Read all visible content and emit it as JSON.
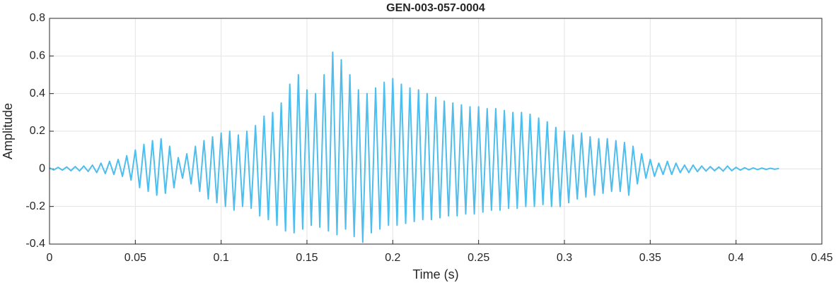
{
  "chart_data": {
    "type": "line",
    "title": "GEN-003-057-0004",
    "xlabel": "Time (s)",
    "ylabel": "Amplitude",
    "x": [
      0,
      0.0025,
      0.005,
      0.0075,
      0.01,
      0.0125,
      0.015,
      0.0175,
      0.02,
      0.0225,
      0.025,
      0.0275,
      0.03,
      0.0325,
      0.035,
      0.0375,
      0.04,
      0.0425,
      0.045,
      0.0475,
      0.05,
      0.0525,
      0.055,
      0.0575,
      0.06,
      0.0625,
      0.065,
      0.0675,
      0.07,
      0.0725,
      0.075,
      0.0775,
      0.08,
      0.0825,
      0.085,
      0.0875,
      0.09,
      0.0925,
      0.095,
      0.0975,
      0.1,
      0.1025,
      0.105,
      0.1075,
      0.11,
      0.1125,
      0.115,
      0.1175,
      0.12,
      0.1225,
      0.125,
      0.1275,
      0.13,
      0.1325,
      0.135,
      0.1375,
      0.14,
      0.1425,
      0.145,
      0.1475,
      0.15,
      0.1525,
      0.155,
      0.1575,
      0.16,
      0.1625,
      0.165,
      0.1675,
      0.17,
      0.1725,
      0.175,
      0.1775,
      0.18,
      0.1825,
      0.185,
      0.1875,
      0.19,
      0.1925,
      0.195,
      0.1975,
      0.2,
      0.2025,
      0.205,
      0.2075,
      0.21,
      0.2125,
      0.215,
      0.2175,
      0.22,
      0.2225,
      0.225,
      0.2275,
      0.23,
      0.2325,
      0.235,
      0.2375,
      0.24,
      0.2425,
      0.245,
      0.2475,
      0.25,
      0.2525,
      0.255,
      0.2575,
      0.26,
      0.2625,
      0.265,
      0.2675,
      0.27,
      0.2725,
      0.275,
      0.2775,
      0.28,
      0.2825,
      0.285,
      0.2875,
      0.29,
      0.2925,
      0.295,
      0.2975,
      0.3,
      0.3025,
      0.305,
      0.3075,
      0.31,
      0.3125,
      0.315,
      0.3175,
      0.32,
      0.3225,
      0.325,
      0.3275,
      0.33,
      0.3325,
      0.335,
      0.3375,
      0.34,
      0.3425,
      0.345,
      0.3475,
      0.35,
      0.3525,
      0.355,
      0.3575,
      0.36,
      0.3625,
      0.365,
      0.3675,
      0.37,
      0.3725,
      0.375,
      0.3775,
      0.38,
      0.3825,
      0.385,
      0.3875,
      0.39,
      0.3925,
      0.395,
      0.3975,
      0.4,
      0.4025,
      0.405,
      0.4075,
      0.41,
      0.4125,
      0.415,
      0.4175,
      0.42,
      0.4225,
      0.425
    ],
    "series": [
      {
        "name": "Amplitude",
        "color": "#4dbeee",
        "values": [
          0.005,
          -0.006,
          0.008,
          -0.007,
          0.01,
          -0.01,
          0.012,
          -0.011,
          0.015,
          -0.014,
          0.02,
          -0.02,
          0.03,
          -0.025,
          0.04,
          -0.03,
          0.05,
          -0.04,
          0.07,
          -0.06,
          0.1,
          -0.1,
          0.13,
          -0.12,
          0.15,
          -0.14,
          0.16,
          -0.13,
          0.12,
          -0.1,
          0.06,
          -0.05,
          0.08,
          -0.08,
          0.12,
          -0.12,
          0.15,
          -0.16,
          0.17,
          -0.18,
          0.19,
          -0.2,
          0.2,
          -0.22,
          0.18,
          -0.2,
          0.2,
          -0.21,
          0.23,
          -0.25,
          0.28,
          -0.27,
          0.3,
          -0.3,
          0.35,
          -0.33,
          0.45,
          -0.34,
          0.5,
          -0.32,
          0.42,
          -0.3,
          0.4,
          -0.31,
          0.5,
          -0.33,
          0.62,
          -0.35,
          0.58,
          -0.32,
          0.5,
          -0.36,
          0.42,
          -0.39,
          0.4,
          -0.34,
          0.43,
          -0.32,
          0.46,
          -0.3,
          0.48,
          -0.3,
          0.45,
          -0.29,
          0.43,
          -0.28,
          0.42,
          -0.27,
          0.4,
          -0.27,
          0.38,
          -0.26,
          0.36,
          -0.25,
          0.35,
          -0.25,
          0.34,
          -0.24,
          0.33,
          -0.24,
          0.33,
          -0.23,
          0.32,
          -0.22,
          0.32,
          -0.22,
          0.31,
          -0.21,
          0.3,
          -0.21,
          0.3,
          -0.2,
          0.29,
          -0.2,
          0.27,
          -0.19,
          0.25,
          -0.2,
          0.22,
          -0.2,
          0.2,
          -0.18,
          0.18,
          -0.16,
          0.19,
          -0.15,
          0.17,
          -0.14,
          0.16,
          -0.13,
          0.16,
          -0.12,
          0.15,
          -0.12,
          0.14,
          -0.14,
          0.12,
          -0.08,
          0.08,
          -0.05,
          0.05,
          -0.04,
          0.03,
          -0.03,
          0.04,
          -0.03,
          0.03,
          -0.02,
          0.02,
          -0.02,
          0.02,
          -0.015,
          0.015,
          -0.012,
          0.012,
          -0.01,
          0.01,
          -0.012,
          0.015,
          -0.01,
          0.008,
          -0.007,
          0.006,
          -0.005,
          0.005,
          -0.004,
          0.004,
          -0.003,
          0.003,
          -0.002,
          0.002
        ]
      }
    ],
    "xlim": [
      0,
      0.45
    ],
    "xticks": [
      0,
      0.05,
      0.1,
      0.15,
      0.2,
      0.25,
      0.3,
      0.35,
      0.4,
      0.45
    ],
    "ylim": [
      -0.4,
      0.8
    ],
    "yticks": [
      -0.4,
      -0.2,
      0,
      0.2,
      0.4,
      0.6,
      0.8
    ],
    "grid": true
  }
}
